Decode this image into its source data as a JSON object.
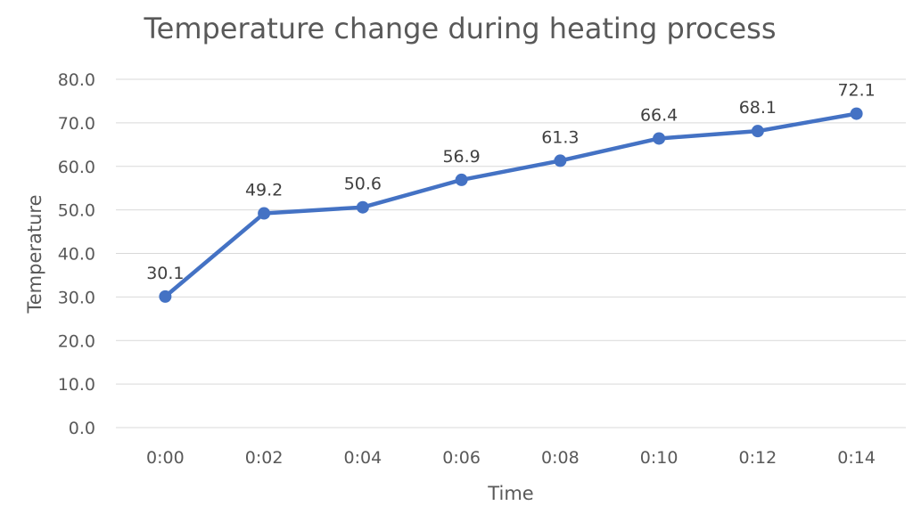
{
  "chart_data": {
    "type": "line",
    "title": "Temperature change during heating process",
    "xlabel": "Time",
    "ylabel": "Temperature",
    "categories": [
      "0:00",
      "0:02",
      "0:04",
      "0:06",
      "0:08",
      "0:10",
      "0:12",
      "0:14"
    ],
    "series": [
      {
        "values": [
          30.1,
          49.2,
          50.6,
          56.9,
          61.3,
          66.4,
          68.1,
          72.1
        ],
        "labels": [
          "30.1",
          "49.2",
          "50.6",
          "56.9",
          "61.3",
          "66.4",
          "68.1",
          "72.1"
        ],
        "color": "#4472c4"
      }
    ],
    "ylim": [
      0,
      80
    ],
    "yticks": [
      "0.0",
      "10.0",
      "20.0",
      "30.0",
      "40.0",
      "50.0",
      "60.0",
      "70.0",
      "80.0"
    ],
    "ytick_values": [
      0,
      10,
      20,
      30,
      40,
      50,
      60,
      70,
      80
    ],
    "grid": true,
    "legend": "none"
  }
}
